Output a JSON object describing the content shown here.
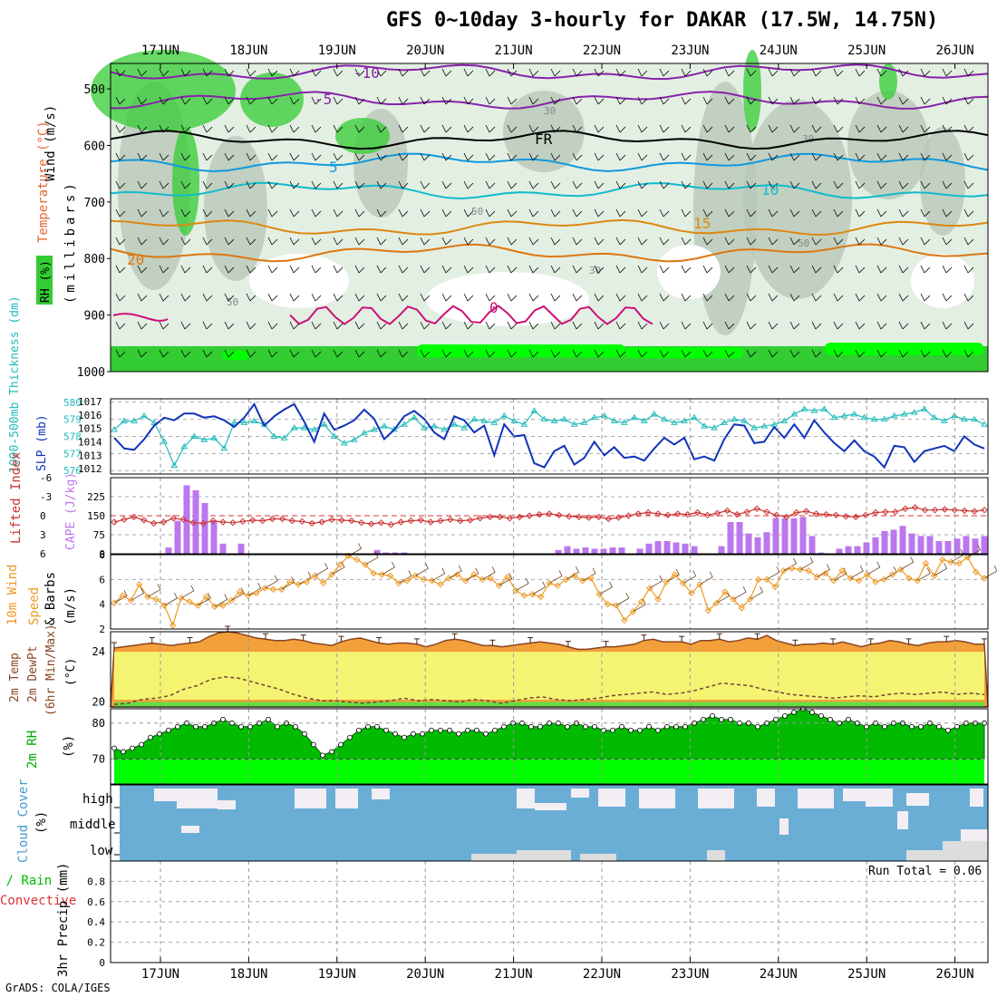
{
  "title": "GFS 0~10day 3-hourly for DAKAR (17.5W, 14.75N)",
  "credit": "GrADS: COLA/IGES",
  "days": [
    "17JUN",
    "18JUN",
    "19JUN",
    "20JUN",
    "21JUN",
    "22JUN",
    "23JUN",
    "24JUN",
    "25JUN",
    "26JUN"
  ],
  "colors": {
    "rh_fill": "#33cc33",
    "rh_bright": "#00ff00",
    "thickness": "#22bbbb",
    "slp": "#1133bb",
    "li": "#cc3333",
    "cape": "#bb77ee",
    "wind_speed": "#ee9922",
    "temp_fill": "#f4a03a",
    "dewpt_fill": "#f4f472",
    "rh2m_dark": "#00bb00",
    "rh2m_light": "#00ff00",
    "cloud": "#6aaed6"
  },
  "chart_data": [
    {
      "type": "contour",
      "name": "upper-air",
      "ylabel_wind": "Wind (m/s)",
      "ylabel_temp": "Temperature (°C)",
      "ylabel_rh": "RH (%)",
      "ylabel_units": "(millibars)",
      "yticks": [
        500,
        600,
        700,
        800,
        900,
        1000
      ],
      "ylim": [
        455,
        1000
      ],
      "isotherm_labels": [
        "-10",
        "-5",
        "FR",
        "5",
        "10",
        "15",
        "20",
        "0"
      ],
      "isotherms": [
        {
          "label": "-10",
          "level": 470,
          "color": "#8822aa"
        },
        {
          "label": "-5",
          "level": 520,
          "color": "#8822aa"
        },
        {
          "label": "FR",
          "level": 590,
          "color": "#000000"
        },
        {
          "label": "5",
          "level": 630,
          "color": "#1199dd"
        },
        {
          "label": "10",
          "level": 680,
          "color": "#11bbcc"
        },
        {
          "label": "15",
          "level": 745,
          "color": "#dd8811"
        },
        {
          "label": "20",
          "level": 790,
          "color": "#dd7711"
        }
      ],
      "rh_contour_labels": [
        "30",
        "50",
        "50",
        "30",
        "50",
        "30"
      ]
    },
    {
      "type": "line",
      "name": "thickness-slp",
      "ylabel_left": "1000-500mb Thickness (dm)",
      "ylabel_right": "SLP (mb)",
      "yticks_left": [
        "576",
        "577",
        "578",
        "579",
        "580"
      ],
      "yticks_right": [
        "1012",
        "1013",
        "1014",
        "1015",
        "1016",
        "1017"
      ],
      "ylim_left": [
        575.8,
        580.2
      ],
      "ylim_right": [
        1011.6,
        1017.2
      ],
      "series": [
        {
          "name": "Thickness",
          "values": [
            578.4,
            578.9,
            578.9,
            579.2,
            578.8,
            577.7,
            576.3,
            577.4,
            578.0,
            577.8,
            577.9,
            577.3,
            578.8,
            578.8,
            578.9,
            578.7,
            578.0,
            577.9,
            578.5,
            578.5,
            578.4,
            578.7,
            578.0,
            577.6,
            577.8,
            578.2,
            578.4,
            578.6,
            578.4,
            578.7,
            579.1,
            578.5,
            578.6,
            578.4,
            578.7,
            578.5,
            579.0,
            578.9,
            578.8,
            579.2,
            578.9,
            578.7,
            579.5,
            579.0,
            578.9,
            579.0,
            578.7,
            578.8,
            579.1,
            579.2,
            578.9,
            578.8,
            579.1,
            578.9,
            579.3,
            579.0,
            578.8,
            578.9,
            579.1,
            578.6,
            578.5,
            578.8,
            579.0,
            578.9,
            578.5,
            578.6,
            578.7,
            578.9,
            579.3,
            579.6,
            579.5,
            579.6,
            579.1,
            579.2,
            579.3,
            579.1,
            579.0,
            579.0,
            579.2,
            579.3,
            579.4,
            579.6,
            579.1,
            578.9,
            579.2,
            579.0,
            579.0,
            578.7
          ]
        },
        {
          "name": "SLP",
          "values": [
            1014.3,
            1013.5,
            1013.4,
            1014.2,
            1015.2,
            1015.8,
            1015.6,
            1016.1,
            1016.1,
            1015.8,
            1015.9,
            1015.6,
            1015.1,
            1015.8,
            1016.8,
            1015.2,
            1015.9,
            1016.4,
            1016.8,
            1015.5,
            1014.0,
            1016.1,
            1014.9,
            1015.2,
            1015.6,
            1016.4,
            1015.7,
            1014.2,
            1014.9,
            1015.9,
            1016.3,
            1015.7,
            1014.7,
            1014.2,
            1015.9,
            1015.6,
            1014.7,
            1015.2,
            1013.0,
            1015.3,
            1014.4,
            1014.5,
            1012.4,
            1012.1,
            1013.3,
            1013.7,
            1012.3,
            1012.8,
            1014.0,
            1013.0,
            1013.6,
            1012.8,
            1012.9,
            1012.6,
            1013.5,
            1014.3,
            1013.8,
            1014.3,
            1012.7,
            1012.9,
            1012.6,
            1014.2,
            1015.3,
            1015.2,
            1013.9,
            1014.0,
            1015.1,
            1014.3,
            1015.3,
            1014.3,
            1015.6,
            1014.7,
            1013.9,
            1013.3,
            1014.1,
            1013.3,
            1012.9,
            1012.1,
            1013.7,
            1013.6,
            1012.5,
            1013.3,
            1013.5,
            1013.7,
            1013.3,
            1014.4,
            1013.8,
            1013.5
          ]
        }
      ]
    },
    {
      "type": "bar+line",
      "name": "li-cape",
      "ylabel_left": "Lifted Index",
      "ylabel_right": "CAPE (J/kg)",
      "yticks_left": [
        "-6",
        "-3",
        "0",
        "3",
        "6"
      ],
      "yticks_right": [
        "0",
        "75",
        "150",
        "225"
      ],
      "ylim_left": [
        6,
        -6
      ],
      "ylim_right": [
        0,
        300
      ],
      "series": [
        {
          "name": "LI",
          "values": [
            1.0,
            0.6,
            0.2,
            0.7,
            1.2,
            1.0,
            0.4,
            0.6,
            1.1,
            1.2,
            0.8,
            1.0,
            1.1,
            0.9,
            0.7,
            0.8,
            0.5,
            0.5,
            0.8,
            0.9,
            1.2,
            1.0,
            0.6,
            0.7,
            0.8,
            1.1,
            1.3,
            1.1,
            1.4,
            1.0,
            0.8,
            0.7,
            1.0,
            0.8,
            0.6,
            0.8,
            0.7,
            0.4,
            0.2,
            0.2,
            0.4,
            0.2,
            0.0,
            -0.2,
            -0.3,
            -0.1,
            0.1,
            0.2,
            0.3,
            0.2,
            0.5,
            0.3,
            0.0,
            -0.3,
            -0.5,
            -0.3,
            -0.1,
            -0.3,
            -0.2,
            -0.5,
            -0.1,
            -0.4,
            -0.8,
            -0.2,
            -0.6,
            -1.1,
            -0.6,
            -0.1,
            0.2,
            -0.5,
            -0.7,
            -0.3,
            -0.2,
            -0.1,
            0.1,
            0.2,
            -0.1,
            -0.5,
            -0.6,
            -0.6,
            -1.1,
            -1.3,
            -0.9,
            -0.9,
            -1.0,
            -0.9,
            -0.8,
            -0.7,
            -0.9
          ]
        },
        {
          "name": "CAPE",
          "values": [
            0,
            0,
            0,
            0,
            0,
            0,
            25,
            130,
            270,
            250,
            200,
            130,
            40,
            0,
            40,
            0,
            0,
            0,
            0,
            0,
            0,
            0,
            0,
            0,
            0,
            0,
            0,
            0,
            0,
            15,
            5,
            5,
            5,
            0,
            0,
            0,
            0,
            0,
            0,
            0,
            0,
            0,
            0,
            0,
            0,
            0,
            0,
            0,
            0,
            15,
            30,
            20,
            25,
            20,
            20,
            25,
            25,
            0,
            20,
            40,
            50,
            50,
            45,
            40,
            30,
            0,
            0,
            30,
            125,
            125,
            80,
            65,
            85,
            140,
            140,
            140,
            145,
            70,
            5,
            0,
            20,
            30,
            30,
            45,
            65,
            90,
            95,
            110,
            80,
            70,
            70,
            50,
            50,
            60,
            70,
            60,
            70
          ]
        }
      ]
    },
    {
      "type": "line",
      "name": "wind10m",
      "ylabel": "10m Wind Speed & Barbs (m/s)",
      "yticks": [
        "2",
        "4",
        "6",
        "8"
      ],
      "ylim": [
        2,
        8
      ],
      "values": [
        4.1,
        4.7,
        4.3,
        5.6,
        4.6,
        4.4,
        3.9,
        2.3,
        4.5,
        4.2,
        3.9,
        4.6,
        3.8,
        3.9,
        4.3,
        5.0,
        4.7,
        4.9,
        5.3,
        5.2,
        5.2,
        5.8,
        5.6,
        5.8,
        6.3,
        5.7,
        6.4,
        7.2,
        7.9,
        7.6,
        7.2,
        6.5,
        6.4,
        6.3,
        5.7,
        5.9,
        6.3,
        6.0,
        5.9,
        5.6,
        6.1,
        6.4,
        5.9,
        6.4,
        6.0,
        6.1,
        5.5,
        6.2,
        5.1,
        4.7,
        4.8,
        4.6,
        5.7,
        5.5,
        6.0,
        6.3,
        5.9,
        6.1,
        4.8,
        4.0,
        3.9,
        2.7,
        3.4,
        4.2,
        5.3,
        4.4,
        5.8,
        6.4,
        5.7,
        4.9,
        5.6,
        3.5,
        4.1,
        5.0,
        4.4,
        3.7,
        4.4,
        6.0,
        6.0,
        5.4,
        6.7,
        6.9,
        6.8,
        6.7,
        6.2,
        6.5,
        5.9,
        6.7,
        6.1,
        5.9,
        6.4,
        5.8,
        6.0,
        6.4,
        6.8,
        6.1,
        5.9,
        7.3,
        6.3,
        7.6,
        7.4,
        7.3,
        7.8,
        6.6,
        6.1
      ]
    },
    {
      "type": "area",
      "name": "temp2m",
      "ylabel": "2m Temp 2m DewPt (6hr Min/Max) (°C)",
      "yticks": [
        "20",
        "24"
      ],
      "ylim": [
        19.6,
        25.6
      ],
      "series": [
        {
          "name": "Temp",
          "values": [
            24.3,
            24.4,
            24.5,
            24.6,
            24.7,
            24.6,
            24.5,
            24.6,
            24.7,
            24.8,
            25.2,
            25.5,
            25.6,
            25.5,
            25.3,
            25.1,
            25.0,
            24.9,
            24.9,
            25.0,
            24.9,
            24.7,
            24.6,
            24.5,
            24.8,
            25.0,
            25.1,
            24.9,
            24.7,
            24.6,
            24.7,
            24.7,
            24.6,
            24.4,
            24.6,
            24.9,
            25.0,
            24.9,
            24.7,
            24.5,
            24.5,
            24.4,
            24.5,
            24.6,
            24.7,
            24.8,
            24.7,
            24.6,
            24.4,
            24.2,
            24.2,
            24.3,
            24.4,
            24.4,
            24.5,
            24.6,
            24.9,
            25.0,
            24.8,
            24.8,
            24.8,
            24.6,
            24.9,
            24.9,
            25.0,
            24.8,
            24.9,
            25.1,
            25.0,
            25.3,
            24.9,
            24.7,
            24.5,
            24.6,
            24.6,
            24.7,
            24.6,
            24.8,
            24.6,
            24.4,
            24.6,
            24.7,
            24.9,
            24.8,
            24.6,
            24.5,
            24.7,
            24.8,
            24.8,
            24.9,
            24.8,
            24.6,
            24.6
          ]
        },
        {
          "name": "DewPt",
          "values": [
            19.8,
            19.9,
            20.2,
            20.3,
            20.5,
            21.0,
            21.3,
            21.8,
            22.0,
            21.9,
            21.6,
            21.3,
            21.0,
            20.6,
            20.3,
            20.1,
            20.1,
            20.0,
            19.9,
            20.0,
            20.1,
            20.3,
            20.1,
            20.2,
            20.1,
            20.0,
            20.2,
            20.1,
            19.9,
            20.1,
            20.3,
            20.4,
            20.2,
            20.1,
            20.2,
            20.3,
            20.5,
            20.6,
            20.7,
            20.8,
            20.6,
            20.7,
            20.9,
            21.2,
            21.5,
            21.4,
            21.3,
            21.0,
            20.8,
            20.6,
            20.5,
            20.4,
            20.3,
            20.4,
            20.5,
            20.4,
            20.6,
            20.7,
            20.6,
            20.7,
            20.8,
            20.6,
            20.7,
            20.6
          ]
        }
      ]
    },
    {
      "type": "area",
      "name": "rh2m",
      "ylabel": "2m RH (%)",
      "yticks": [
        "70",
        "80"
      ],
      "ylim": [
        63,
        84
      ],
      "values": [
        73,
        72,
        73,
        74,
        76,
        77,
        78,
        79,
        80,
        79,
        79,
        80,
        81,
        80,
        79,
        79,
        80,
        81,
        79,
        80,
        79,
        77,
        74,
        71,
        72,
        74,
        76,
        78,
        79,
        79,
        78,
        77,
        76,
        77,
        77,
        78,
        78,
        78,
        77,
        78,
        78,
        77,
        78,
        79,
        80,
        80,
        79,
        79,
        80,
        80,
        79,
        80,
        79,
        79,
        78,
        78,
        79,
        78,
        78,
        79,
        78,
        79,
        79,
        79,
        80,
        81,
        82,
        81,
        81,
        80,
        80,
        79,
        80,
        81,
        82,
        83,
        84,
        83,
        82,
        81,
        80,
        81,
        80,
        79,
        80,
        79,
        80,
        80,
        79,
        79,
        80,
        79,
        78,
        79,
        80,
        80,
        80
      ]
    },
    {
      "type": "step",
      "name": "cloud",
      "ylabel": "Cloud Cover (%)",
      "levels": [
        "high",
        "middle",
        "low"
      ]
    },
    {
      "type": "bar",
      "name": "precip",
      "ylabel_total": "Total / Rain",
      "ylabel_conv": "Convective",
      "ylabel": "3hr Precip (mm)",
      "yticks": [
        "0",
        "0.2",
        "0.4",
        "0.6",
        "0.8"
      ],
      "ylim": [
        0,
        1
      ],
      "run_total_label": "Run Total = 0.06",
      "values": []
    }
  ]
}
